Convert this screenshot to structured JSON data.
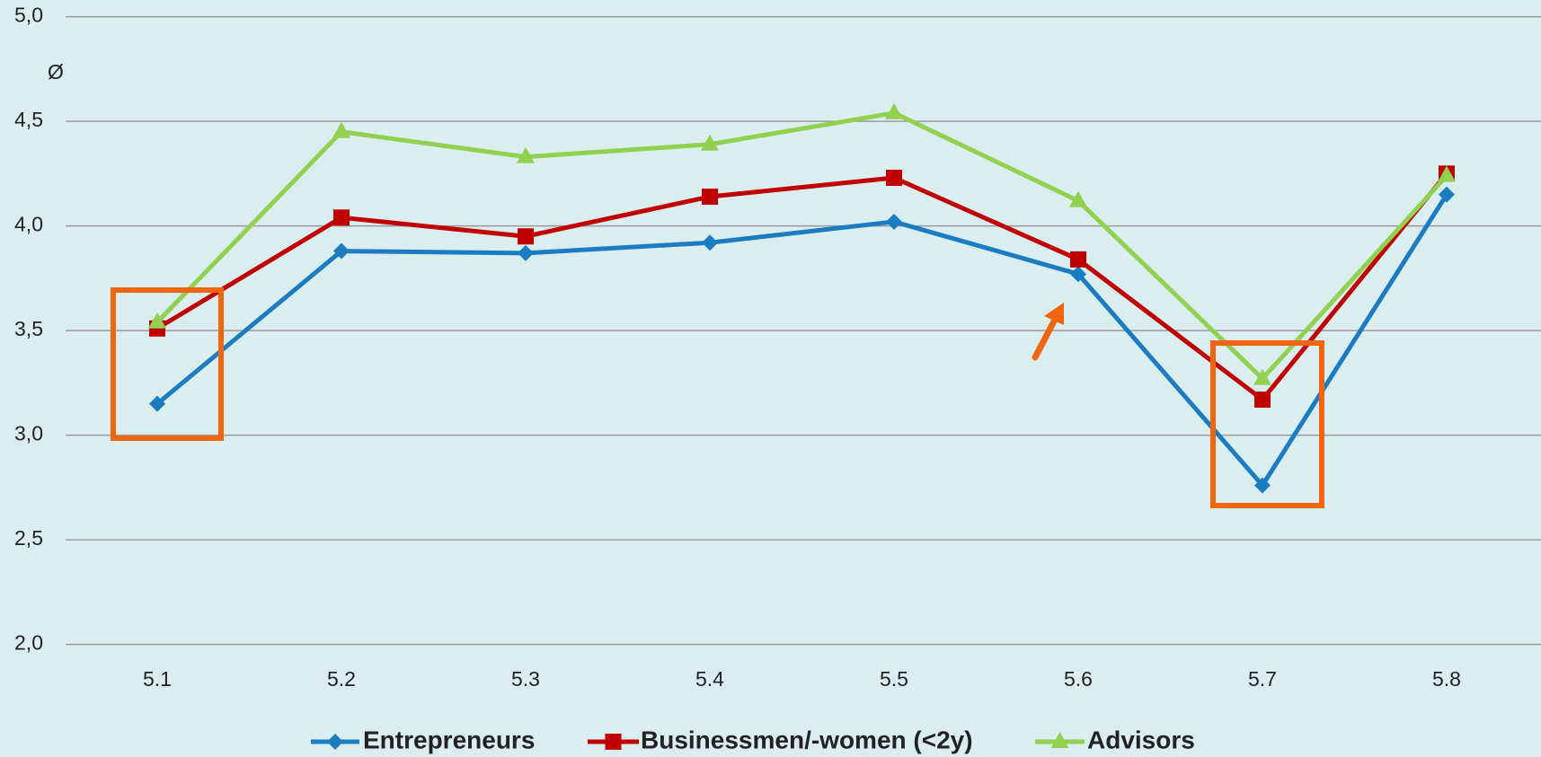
{
  "chart_data": {
    "type": "line",
    "annotation": "Ø",
    "categories": [
      "5.1",
      "5.2",
      "5.3",
      "5.4",
      "5.5",
      "5.6",
      "5.7",
      "5.8"
    ],
    "series": [
      {
        "name": "Entrepreneurs",
        "color": "#1b7cc2",
        "marker": "diamond",
        "values": [
          3.15,
          3.88,
          3.87,
          3.92,
          4.02,
          3.77,
          2.76,
          4.15
        ]
      },
      {
        "name": "Businessmen/-women (<2y)",
        "color": "#c00000",
        "marker": "square",
        "values": [
          3.51,
          4.04,
          3.95,
          4.14,
          4.23,
          3.84,
          3.17,
          4.25
        ]
      },
      {
        "name": "Advisors",
        "color": "#92d050",
        "marker": "triangle",
        "values": [
          3.54,
          4.45,
          4.33,
          4.39,
          4.54,
          4.12,
          3.27,
          4.24
        ]
      }
    ],
    "ylim": [
      2,
      5
    ],
    "yticks": [
      {
        "value": 2,
        "label": "2,0"
      },
      {
        "value": 2.5,
        "label": "2,5"
      },
      {
        "value": 3,
        "label": "3,0"
      },
      {
        "value": 3.5,
        "label": "3,5"
      },
      {
        "value": 4,
        "label": "4,0"
      },
      {
        "value": 4.5,
        "label": "4,5"
      },
      {
        "value": 5,
        "label": "5,0"
      }
    ],
    "grid": true
  }
}
